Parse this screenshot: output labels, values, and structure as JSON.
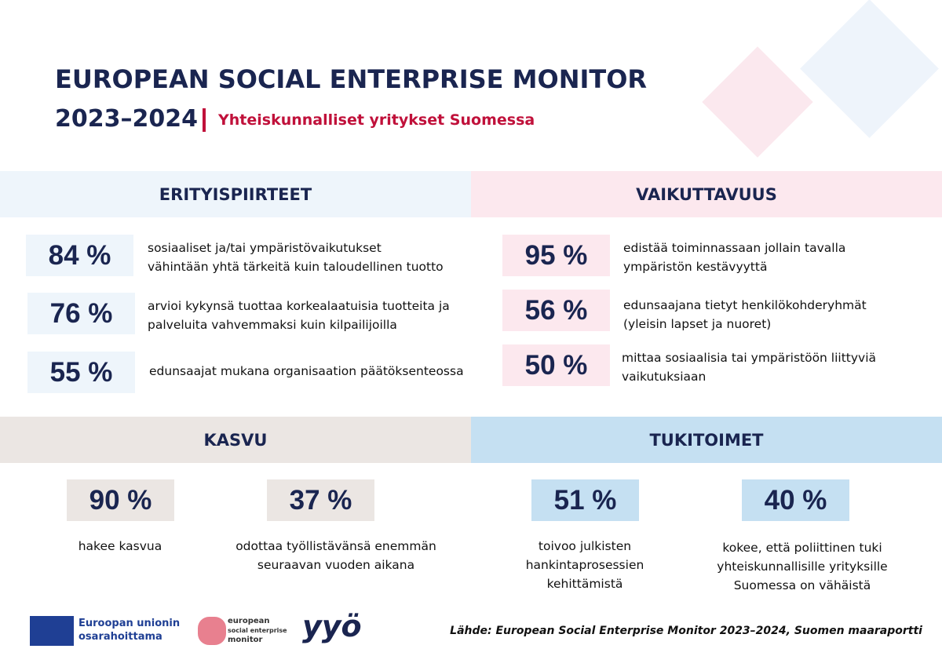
{
  "header": {
    "title": "EUROPEAN SOCIAL ENTERPRISE MONITOR",
    "years": "2023–2024",
    "subtitle": "Yhteiskunnalliset yritykset Suomessa"
  },
  "sections": [
    {
      "title": "ERITYISPIIRTEET",
      "items": [
        {
          "stat": "84 %",
          "lines": [
            "sosiaaliset ja/tai ympäristövaikutukset",
            "vähintään yhtä tärkeitä kuin taloudellinen tuotto"
          ]
        },
        {
          "stat": "76 %",
          "lines": [
            "arvioi kykynsä tuottaa korkealaatuisia tuotteita ja",
            "palveluita vahvemmaksi kuin kilpailijoilla"
          ]
        },
        {
          "stat": "55 %",
          "lines": [
            "edunsaajat mukana organisaation päätöksenteossa"
          ]
        }
      ]
    },
    {
      "title": "VAIKUTTAVUUS",
      "items": [
        {
          "stat": "95 %",
          "lines": [
            "edistää toiminnassaan jollain tavalla",
            "ympäristön kestävyyttä"
          ]
        },
        {
          "stat": "56 %",
          "lines": [
            "edunsaajana tietyt henkilökohderyhmät",
            "(yleisin lapset ja nuoret)"
          ]
        },
        {
          "stat": "50 %",
          "lines": [
            "mittaa sosiaalisia tai ympäristöön liittyviä",
            "vaikutuksiaan"
          ]
        }
      ]
    },
    {
      "title": "KASVU",
      "items": [
        {
          "stat": "90 %",
          "lines": [
            "hakee kasvua"
          ]
        },
        {
          "stat": "37 %",
          "lines": [
            "odottaa työllistävänsä enemmän",
            "seuraavan vuoden aikana"
          ]
        }
      ]
    },
    {
      "title": "TUKITOIMET",
      "items": [
        {
          "stat": "51 %",
          "lines": [
            "toivoo julkisten",
            "hankintaprosessien",
            "kehittämistä"
          ]
        },
        {
          "stat": "40 %",
          "lines": [
            "kokee, että poliittinen tuki",
            "yhteiskunnallisille yrityksille",
            "Suomessa on vähäistä"
          ]
        }
      ]
    }
  ],
  "footer": {
    "eu_lines": [
      "Euroopan unionin",
      "osarahoittama"
    ],
    "esem_lines": [
      "european",
      "social enterprise",
      "monitor"
    ],
    "yyo": "yyö",
    "source": "Lähde: European Social Enterprise Monitor 2023–2024, Suomen maaraportti"
  }
}
